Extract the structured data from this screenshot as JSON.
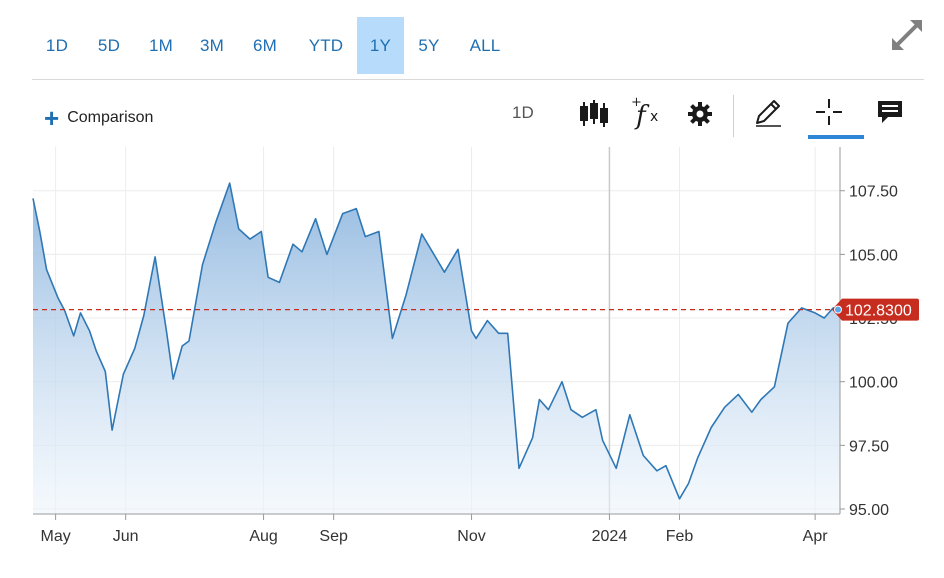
{
  "ranges": {
    "items": [
      "1D",
      "5D",
      "1M",
      "3M",
      "6M",
      "YTD",
      "1Y",
      "5Y",
      "ALL"
    ],
    "active": "1Y"
  },
  "toolbar": {
    "comparison_label": "Comparison",
    "interval_label": "1D",
    "icons": [
      "candlestick-icon",
      "function-icon",
      "gear-icon",
      "pencil-icon",
      "crosshair-icon",
      "comment-icon"
    ]
  },
  "colors": {
    "accent": "#1f6fb2",
    "line": "#2f78b5",
    "price_badge": "#c62d1f",
    "active_range": "#b7dcfb"
  },
  "chart_data": {
    "type": "area",
    "x_labels": [
      "May",
      "Jun",
      "Aug",
      "Sep",
      "Nov",
      "2024",
      "Feb",
      "Apr"
    ],
    "y_ticks": [
      "95.00",
      "97.50",
      "100.00",
      "102.50",
      "105.00",
      "107.50"
    ],
    "ylim": [
      95.0,
      108.0
    ],
    "xlim": [
      "2023-04-21",
      "2024-04-12"
    ],
    "grid": true,
    "current_price": 102.83,
    "current_price_label": "102.8300",
    "x": [
      "2023-04-21",
      "2023-04-24",
      "2023-04-27",
      "2023-05-02",
      "2023-05-05",
      "2023-05-09",
      "2023-05-12",
      "2023-05-16",
      "2023-05-19",
      "2023-05-23",
      "2023-05-26",
      "2023-05-31",
      "2023-06-05",
      "2023-06-09",
      "2023-06-14",
      "2023-06-19",
      "2023-06-22",
      "2023-06-26",
      "2023-06-29",
      "2023-07-05",
      "2023-07-11",
      "2023-07-17",
      "2023-07-21",
      "2023-07-26",
      "2023-07-31",
      "2023-08-03",
      "2023-08-08",
      "2023-08-14",
      "2023-08-18",
      "2023-08-24",
      "2023-08-29",
      "2023-09-05",
      "2023-09-11",
      "2023-09-15",
      "2023-09-21",
      "2023-09-27",
      "2023-10-03",
      "2023-10-10",
      "2023-10-16",
      "2023-10-20",
      "2023-10-26",
      "2023-11-01",
      "2023-11-03",
      "2023-11-08",
      "2023-11-13",
      "2023-11-17",
      "2023-11-22",
      "2023-11-28",
      "2023-12-01",
      "2023-12-05",
      "2023-12-11",
      "2023-12-15",
      "2023-12-20",
      "2023-12-26",
      "2023-12-29",
      "2024-01-04",
      "2024-01-10",
      "2024-01-16",
      "2024-01-22",
      "2024-01-26",
      "2024-02-01",
      "2024-02-05",
      "2024-02-09",
      "2024-02-15",
      "2024-02-21",
      "2024-02-27",
      "2024-03-04",
      "2024-03-08",
      "2024-03-14",
      "2024-03-20",
      "2024-03-26",
      "2024-04-01",
      "2024-04-05",
      "2024-04-09",
      "2024-04-12"
    ],
    "values": [
      107.2,
      105.9,
      104.4,
      103.3,
      102.8,
      101.8,
      102.7,
      102.0,
      101.2,
      100.4,
      98.1,
      100.3,
      101.3,
      102.6,
      104.9,
      102.0,
      100.1,
      101.4,
      101.6,
      104.6,
      106.3,
      107.8,
      106.0,
      105.6,
      105.9,
      104.1,
      103.9,
      105.4,
      105.1,
      106.4,
      105.0,
      106.6,
      106.8,
      105.7,
      105.9,
      101.7,
      103.4,
      105.8,
      104.9,
      104.3,
      105.2,
      102.0,
      101.7,
      102.4,
      101.9,
      101.9,
      96.6,
      97.8,
      99.3,
      98.9,
      100.0,
      98.9,
      98.6,
      98.9,
      97.7,
      96.6,
      98.7,
      97.1,
      96.5,
      96.7,
      95.4,
      96.0,
      97.0,
      98.2,
      99.0,
      99.5,
      98.8,
      99.3,
      99.8,
      102.3,
      102.9,
      102.7,
      102.5,
      102.9,
      102.83
    ]
  }
}
